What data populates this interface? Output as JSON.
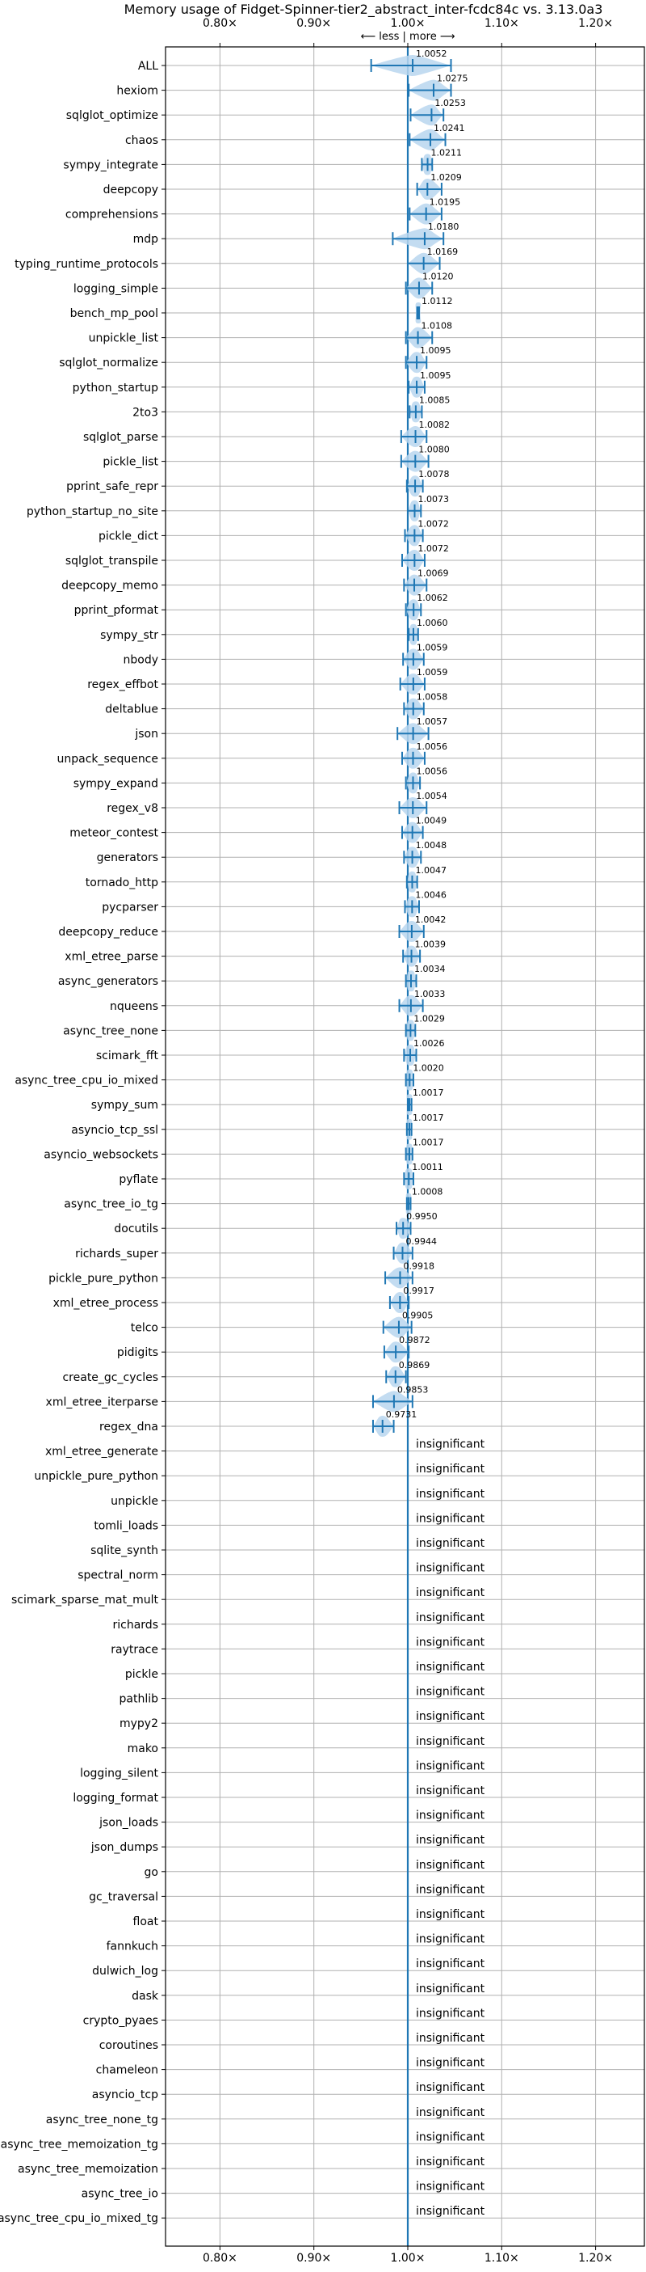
{
  "chart_data": {
    "type": "violin",
    "title": "Memory usage of Fidget-Spinner-tier2_abstract_inter-fcdc84c vs. 3.13.0a3",
    "direction_label": "⟵ less | more ⟶",
    "xlim": [
      0.75,
      1.25
    ],
    "xticks": [
      0.8,
      0.9,
      1.0,
      1.1,
      1.2
    ],
    "xtick_labels": [
      "0.80×",
      "0.90×",
      "1.00×",
      "1.10×",
      "1.20×"
    ],
    "grid": true,
    "reference_line": 1.0,
    "insignificant_label": "insignificant",
    "benchmarks": [
      {
        "name": "ALL",
        "value": 1.0052,
        "label": "1.0052",
        "lo": 0.961,
        "hi": 1.046,
        "significant": true
      },
      {
        "name": "hexiom",
        "value": 1.0275,
        "label": "1.0275",
        "lo": 1.001,
        "hi": 1.046,
        "significant": true
      },
      {
        "name": "sqlglot_optimize",
        "value": 1.0253,
        "label": "1.0253",
        "lo": 1.003,
        "hi": 1.038,
        "significant": true
      },
      {
        "name": "chaos",
        "value": 1.0241,
        "label": "1.0241",
        "lo": 1.002,
        "hi": 1.04,
        "significant": true
      },
      {
        "name": "sympy_integrate",
        "value": 1.0211,
        "label": "1.0211",
        "lo": 1.015,
        "hi": 1.026,
        "significant": true
      },
      {
        "name": "deepcopy",
        "value": 1.0209,
        "label": "1.0209",
        "lo": 1.01,
        "hi": 1.036,
        "significant": true
      },
      {
        "name": "comprehensions",
        "value": 1.0195,
        "label": "1.0195",
        "lo": 1.002,
        "hi": 1.036,
        "significant": true
      },
      {
        "name": "mdp",
        "value": 1.018,
        "label": "1.0180",
        "lo": 0.984,
        "hi": 1.038,
        "significant": true
      },
      {
        "name": "typing_runtime_protocols",
        "value": 1.0169,
        "label": "1.0169",
        "lo": 1.0,
        "hi": 1.034,
        "significant": true
      },
      {
        "name": "logging_simple",
        "value": 1.012,
        "label": "1.0120",
        "lo": 0.998,
        "hi": 1.026,
        "significant": true
      },
      {
        "name": "bench_mp_pool",
        "value": 1.0112,
        "label": "1.0112",
        "lo": 1.01,
        "hi": 1.012,
        "significant": true
      },
      {
        "name": "unpickle_list",
        "value": 1.0108,
        "label": "1.0108",
        "lo": 0.998,
        "hi": 1.026,
        "significant": true
      },
      {
        "name": "sqlglot_normalize",
        "value": 1.0095,
        "label": "1.0095",
        "lo": 0.998,
        "hi": 1.02,
        "significant": true
      },
      {
        "name": "python_startup",
        "value": 1.0095,
        "label": "1.0095",
        "lo": 1.001,
        "hi": 1.018,
        "significant": true
      },
      {
        "name": "2to3",
        "value": 1.0085,
        "label": "1.0085",
        "lo": 1.002,
        "hi": 1.015,
        "significant": true
      },
      {
        "name": "sqlglot_parse",
        "value": 1.0082,
        "label": "1.0082",
        "lo": 0.993,
        "hi": 1.02,
        "significant": true
      },
      {
        "name": "pickle_list",
        "value": 1.008,
        "label": "1.0080",
        "lo": 0.993,
        "hi": 1.022,
        "significant": true
      },
      {
        "name": "pprint_safe_repr",
        "value": 1.0078,
        "label": "1.0078",
        "lo": 0.999,
        "hi": 1.016,
        "significant": true
      },
      {
        "name": "python_startup_no_site",
        "value": 1.0073,
        "label": "1.0073",
        "lo": 1.0,
        "hi": 1.014,
        "significant": true
      },
      {
        "name": "pickle_dict",
        "value": 1.0072,
        "label": "1.0072",
        "lo": 0.997,
        "hi": 1.016,
        "significant": true
      },
      {
        "name": "sqlglot_transpile",
        "value": 1.0072,
        "label": "1.0072",
        "lo": 0.994,
        "hi": 1.018,
        "significant": true
      },
      {
        "name": "deepcopy_memo",
        "value": 1.0069,
        "label": "1.0069",
        "lo": 0.996,
        "hi": 1.02,
        "significant": true
      },
      {
        "name": "pprint_pformat",
        "value": 1.0062,
        "label": "1.0062",
        "lo": 0.998,
        "hi": 1.014,
        "significant": true
      },
      {
        "name": "sympy_str",
        "value": 1.006,
        "label": "1.0060",
        "lo": 1.001,
        "hi": 1.011,
        "significant": true
      },
      {
        "name": "nbody",
        "value": 1.0059,
        "label": "1.0059",
        "lo": 0.995,
        "hi": 1.017,
        "significant": true
      },
      {
        "name": "regex_effbot",
        "value": 1.0059,
        "label": "1.0059",
        "lo": 0.992,
        "hi": 1.018,
        "significant": true
      },
      {
        "name": "deltablue",
        "value": 1.0058,
        "label": "1.0058",
        "lo": 0.996,
        "hi": 1.017,
        "significant": true
      },
      {
        "name": "json",
        "value": 1.0057,
        "label": "1.0057",
        "lo": 0.989,
        "hi": 1.022,
        "significant": true
      },
      {
        "name": "unpack_sequence",
        "value": 1.0056,
        "label": "1.0056",
        "lo": 0.994,
        "hi": 1.018,
        "significant": true
      },
      {
        "name": "sympy_expand",
        "value": 1.0056,
        "label": "1.0056",
        "lo": 0.998,
        "hi": 1.013,
        "significant": true
      },
      {
        "name": "regex_v8",
        "value": 1.0054,
        "label": "1.0054",
        "lo": 0.991,
        "hi": 1.02,
        "significant": true
      },
      {
        "name": "meteor_contest",
        "value": 1.0049,
        "label": "1.0049",
        "lo": 0.994,
        "hi": 1.016,
        "significant": true
      },
      {
        "name": "generators",
        "value": 1.0048,
        "label": "1.0048",
        "lo": 0.996,
        "hi": 1.014,
        "significant": true
      },
      {
        "name": "tornado_http",
        "value": 1.0047,
        "label": "1.0047",
        "lo": 0.999,
        "hi": 1.01,
        "significant": true
      },
      {
        "name": "pycparser",
        "value": 1.0046,
        "label": "1.0046",
        "lo": 0.997,
        "hi": 1.012,
        "significant": true
      },
      {
        "name": "deepcopy_reduce",
        "value": 1.0042,
        "label": "1.0042",
        "lo": 0.991,
        "hi": 1.017,
        "significant": true
      },
      {
        "name": "xml_etree_parse",
        "value": 1.0039,
        "label": "1.0039",
        "lo": 0.995,
        "hi": 1.013,
        "significant": true
      },
      {
        "name": "async_generators",
        "value": 1.0034,
        "label": "1.0034",
        "lo": 0.998,
        "hi": 1.009,
        "significant": true
      },
      {
        "name": "nqueens",
        "value": 1.0033,
        "label": "1.0033",
        "lo": 0.991,
        "hi": 1.016,
        "significant": true
      },
      {
        "name": "async_tree_none",
        "value": 1.0029,
        "label": "1.0029",
        "lo": 0.998,
        "hi": 1.008,
        "significant": true
      },
      {
        "name": "scimark_fft",
        "value": 1.0026,
        "label": "1.0026",
        "lo": 0.996,
        "hi": 1.009,
        "significant": true
      },
      {
        "name": "async_tree_cpu_io_mixed",
        "value": 1.002,
        "label": "1.0020",
        "lo": 0.998,
        "hi": 1.006,
        "significant": true
      },
      {
        "name": "sympy_sum",
        "value": 1.0017,
        "label": "1.0017",
        "lo": 1.0,
        "hi": 1.004,
        "significant": true
      },
      {
        "name": "asyncio_tcp_ssl",
        "value": 1.0017,
        "label": "1.0017",
        "lo": 0.999,
        "hi": 1.004,
        "significant": true
      },
      {
        "name": "asyncio_websockets",
        "value": 1.0017,
        "label": "1.0017",
        "lo": 0.998,
        "hi": 1.005,
        "significant": true
      },
      {
        "name": "pyflate",
        "value": 1.0011,
        "label": "1.0011",
        "lo": 0.996,
        "hi": 1.006,
        "significant": true
      },
      {
        "name": "async_tree_io_tg",
        "value": 1.0008,
        "label": "1.0008",
        "lo": 0.999,
        "hi": 1.003,
        "significant": true
      },
      {
        "name": "docutils",
        "value": 0.995,
        "label": "0.9950",
        "lo": 0.988,
        "hi": 1.003,
        "significant": true
      },
      {
        "name": "richards_super",
        "value": 0.9944,
        "label": "0.9944",
        "lo": 0.985,
        "hi": 1.005,
        "significant": true
      },
      {
        "name": "pickle_pure_python",
        "value": 0.9918,
        "label": "0.9918",
        "lo": 0.976,
        "hi": 1.005,
        "significant": true
      },
      {
        "name": "xml_etree_process",
        "value": 0.9917,
        "label": "0.9917",
        "lo": 0.981,
        "hi": 1.001,
        "significant": true
      },
      {
        "name": "telco",
        "value": 0.9905,
        "label": "0.9905",
        "lo": 0.974,
        "hi": 1.004,
        "significant": true
      },
      {
        "name": "pidigits",
        "value": 0.9872,
        "label": "0.9872",
        "lo": 0.975,
        "hi": 1.001,
        "significant": true
      },
      {
        "name": "create_gc_cycles",
        "value": 0.9869,
        "label": "0.9869",
        "lo": 0.977,
        "hi": 0.998,
        "significant": true
      },
      {
        "name": "xml_etree_iterparse",
        "value": 0.9853,
        "label": "0.9853",
        "lo": 0.963,
        "hi": 1.005,
        "significant": true
      },
      {
        "name": "regex_dna",
        "value": 0.9731,
        "label": "0.9731",
        "lo": 0.963,
        "hi": 0.985,
        "significant": true
      },
      {
        "name": "xml_etree_generate",
        "significant": false
      },
      {
        "name": "unpickle_pure_python",
        "significant": false
      },
      {
        "name": "unpickle",
        "significant": false
      },
      {
        "name": "tomli_loads",
        "significant": false
      },
      {
        "name": "sqlite_synth",
        "significant": false
      },
      {
        "name": "spectral_norm",
        "significant": false
      },
      {
        "name": "scimark_sparse_mat_mult",
        "significant": false
      },
      {
        "name": "richards",
        "significant": false
      },
      {
        "name": "raytrace",
        "significant": false
      },
      {
        "name": "pickle",
        "significant": false
      },
      {
        "name": "pathlib",
        "significant": false
      },
      {
        "name": "mypy2",
        "significant": false
      },
      {
        "name": "mako",
        "significant": false
      },
      {
        "name": "logging_silent",
        "significant": false
      },
      {
        "name": "logging_format",
        "significant": false
      },
      {
        "name": "json_loads",
        "significant": false
      },
      {
        "name": "json_dumps",
        "significant": false
      },
      {
        "name": "go",
        "significant": false
      },
      {
        "name": "gc_traversal",
        "significant": false
      },
      {
        "name": "float",
        "significant": false
      },
      {
        "name": "fannkuch",
        "significant": false
      },
      {
        "name": "dulwich_log",
        "significant": false
      },
      {
        "name": "dask",
        "significant": false
      },
      {
        "name": "crypto_pyaes",
        "significant": false
      },
      {
        "name": "coroutines",
        "significant": false
      },
      {
        "name": "chameleon",
        "significant": false
      },
      {
        "name": "asyncio_tcp",
        "significant": false
      },
      {
        "name": "async_tree_none_tg",
        "significant": false
      },
      {
        "name": "async_tree_memoization_tg",
        "significant": false
      },
      {
        "name": "async_tree_memoization",
        "significant": false
      },
      {
        "name": "async_tree_io",
        "significant": false
      },
      {
        "name": "async_tree_cpu_io_mixed_tg",
        "significant": false
      }
    ],
    "colors": {
      "violin": "#b9d6ef",
      "errorbar": "#1f77b4",
      "refline": "#1f77b4",
      "grid": "#b0b0b0",
      "axis": "#000000"
    }
  }
}
